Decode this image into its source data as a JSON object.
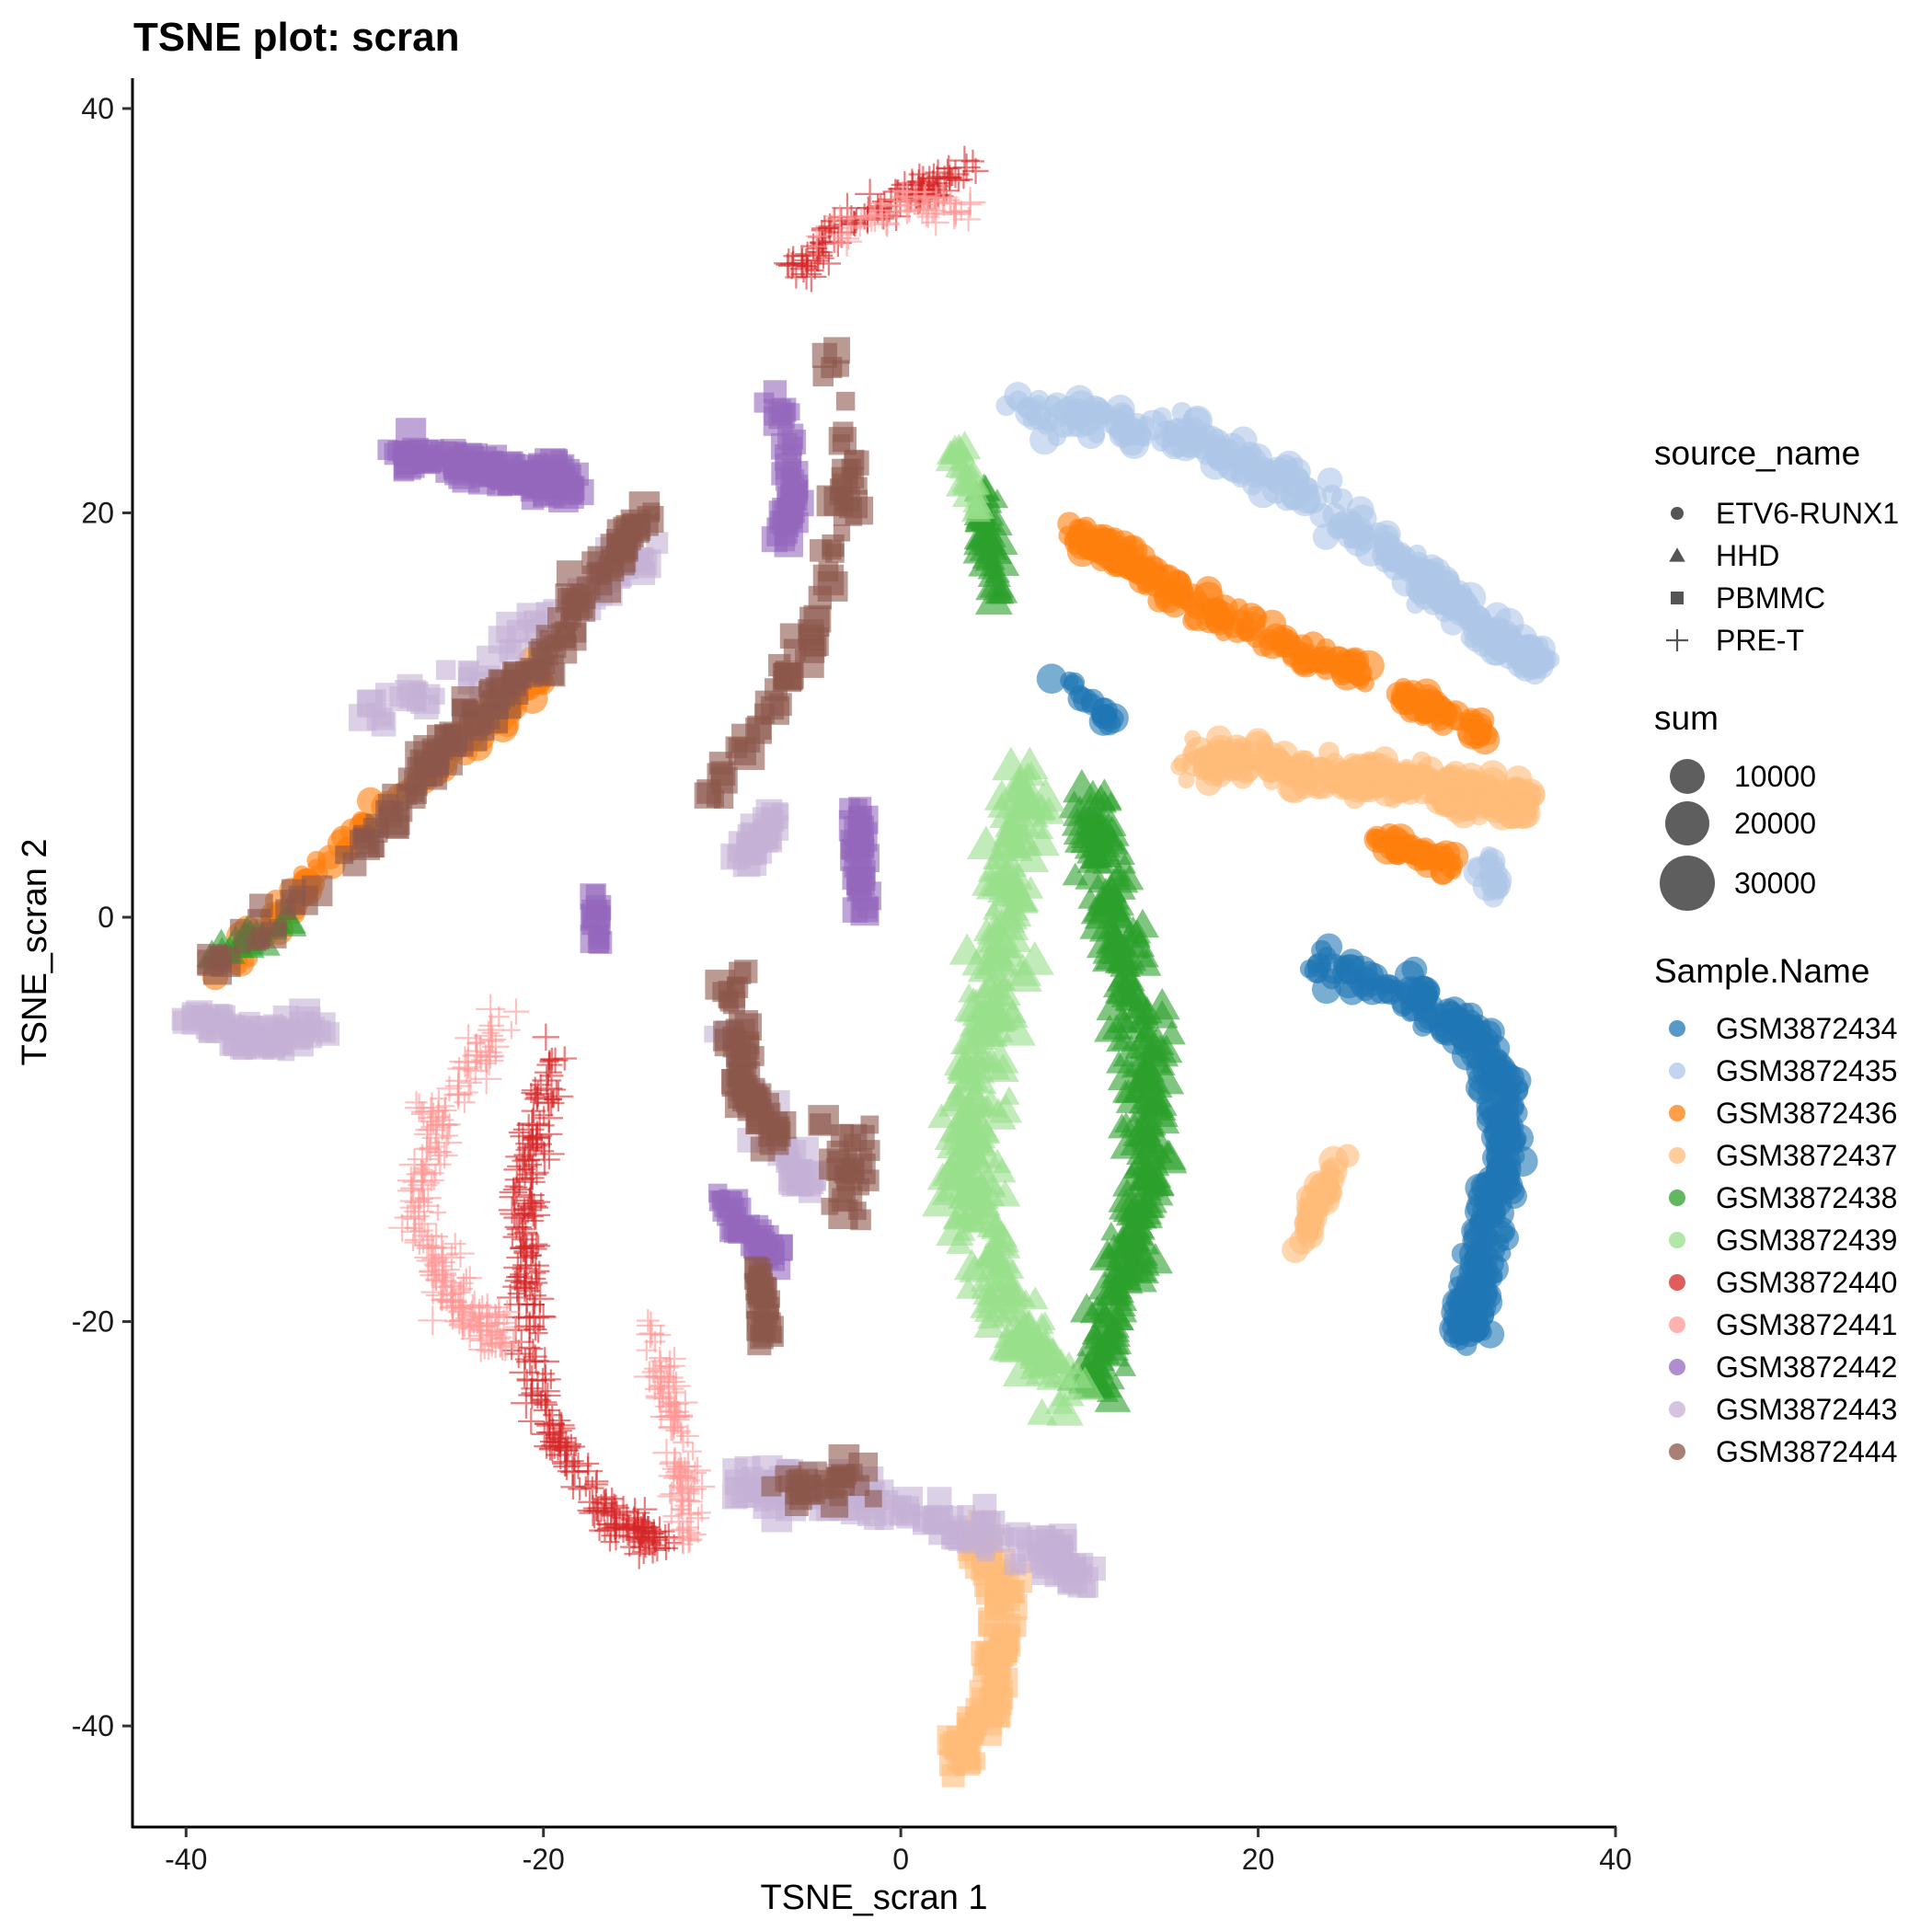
{
  "chart_data": {
    "type": "scatter",
    "title": "TSNE plot: scran",
    "xlabel": "TSNE_scran 1",
    "ylabel": "TSNE_scran 2",
    "xlim": [
      -43,
      40
    ],
    "ylim": [
      -45,
      41.5
    ],
    "x_ticks": [
      -40,
      -20,
      0,
      20,
      40
    ],
    "y_ticks": [
      -40,
      -20,
      0,
      20,
      40
    ],
    "grid": false,
    "legend_position": "right",
    "shape_legend": {
      "title": "source_name",
      "items": [
        {
          "label": "ETV6-RUNX1",
          "shape": "circle"
        },
        {
          "label": "HHD",
          "shape": "triangle"
        },
        {
          "label": "PBMMC",
          "shape": "square"
        },
        {
          "label": "PRE-T",
          "shape": "plus"
        }
      ]
    },
    "size_legend": {
      "title": "sum",
      "items": [
        "10000",
        "20000",
        "30000"
      ]
    },
    "color_legend": {
      "title": "Sample.Name",
      "items": [
        {
          "label": "GSM3872434",
          "color": "#1f77b4"
        },
        {
          "label": "GSM3872435",
          "color": "#aec7e8"
        },
        {
          "label": "GSM3872436",
          "color": "#ff7f0e"
        },
        {
          "label": "GSM3872437",
          "color": "#ffbb78"
        },
        {
          "label": "GSM3872438",
          "color": "#2ca02c"
        },
        {
          "label": "GSM3872439",
          "color": "#98df8a"
        },
        {
          "label": "GSM3872440",
          "color": "#d62728"
        },
        {
          "label": "GSM3872441",
          "color": "#ff9896"
        },
        {
          "label": "GSM3872442",
          "color": "#9467bd"
        },
        {
          "label": "GSM3872443",
          "color": "#c5b0d5"
        },
        {
          "label": "GSM3872444",
          "color": "#8c564b"
        }
      ]
    },
    "clusters": [
      {
        "sample": "GSM3872434",
        "shape": "circle",
        "n": 360,
        "path": [
          [
            23,
            -2.2
          ],
          [
            29,
            -3.8
          ],
          [
            33,
            -7
          ],
          [
            34,
            -11
          ],
          [
            33,
            -15
          ],
          [
            32,
            -19
          ],
          [
            31.5,
            -20.5
          ]
        ],
        "spread": 1.3
      },
      {
        "sample": "GSM3872434",
        "shape": "circle",
        "n": 18,
        "path": [
          [
            9,
            12
          ],
          [
            12,
            9.5
          ]
        ],
        "spread": 0.7
      },
      {
        "sample": "GSM3872435",
        "shape": "circle",
        "n": 300,
        "path": [
          [
            6,
            25
          ],
          [
            15,
            24
          ],
          [
            23,
            21
          ],
          [
            29,
            17
          ],
          [
            33,
            14
          ],
          [
            36,
            12.5
          ]
        ],
        "spread": 1.2
      },
      {
        "sample": "GSM3872435",
        "shape": "circle",
        "n": 16,
        "path": [
          [
            33,
            3
          ],
          [
            33.5,
            1
          ]
        ],
        "spread": 0.8
      },
      {
        "sample": "GSM3872436",
        "shape": "circle",
        "n": 160,
        "path": [
          [
            9.5,
            19
          ],
          [
            14,
            17
          ],
          [
            20,
            14
          ],
          [
            26,
            12
          ]
        ],
        "spread": 0.9
      },
      {
        "sample": "GSM3872436",
        "shape": "circle",
        "n": 50,
        "path": [
          [
            28,
            11
          ],
          [
            33,
            9
          ]
        ],
        "spread": 0.7
      },
      {
        "sample": "GSM3872436",
        "shape": "circle",
        "n": 40,
        "path": [
          [
            26,
            4
          ],
          [
            31,
            2.5
          ]
        ],
        "spread": 0.6
      },
      {
        "sample": "GSM3872436",
        "shape": "circle",
        "n": 120,
        "path": [
          [
            -38,
            -3
          ],
          [
            -32,
            3
          ],
          [
            -24,
            9
          ],
          [
            -20,
            12
          ]
        ],
        "spread": 0.9
      },
      {
        "sample": "GSM3872437",
        "shape": "circle",
        "n": 260,
        "path": [
          [
            16,
            8
          ],
          [
            24,
            7
          ],
          [
            30,
            6.5
          ],
          [
            35,
            5.5
          ]
        ],
        "spread": 1.3
      },
      {
        "sample": "GSM3872437",
        "shape": "circle",
        "n": 40,
        "path": [
          [
            24.5,
            -12
          ],
          [
            22.5,
            -16
          ]
        ],
        "spread": 0.6
      },
      {
        "sample": "GSM3872437",
        "shape": "square",
        "n": 110,
        "path": [
          [
            4,
            -30
          ],
          [
            6,
            -34
          ],
          [
            5,
            -39
          ],
          [
            3,
            -41.5
          ]
        ],
        "spread": 1.0
      },
      {
        "sample": "GSM3872438",
        "shape": "triangle",
        "n": 330,
        "path": [
          [
            10.5,
            6
          ],
          [
            12,
            0
          ],
          [
            13.5,
            -6
          ],
          [
            14,
            -12
          ],
          [
            12.5,
            -18
          ],
          [
            10.5,
            -23.5
          ]
        ],
        "spread": 1.6
      },
      {
        "sample": "GSM3872438",
        "shape": "triangle",
        "n": 45,
        "path": [
          [
            4.5,
            21
          ],
          [
            5.5,
            16
          ]
        ],
        "spread": 0.8
      },
      {
        "sample": "GSM3872438",
        "shape": "triangle",
        "n": 18,
        "path": [
          [
            -39,
            -2
          ],
          [
            -34,
            0
          ]
        ],
        "spread": 0.6
      },
      {
        "sample": "GSM3872439",
        "shape": "triangle",
        "n": 360,
        "path": [
          [
            7,
            7
          ],
          [
            6,
            0
          ],
          [
            4,
            -8
          ],
          [
            4,
            -14
          ],
          [
            6,
            -19
          ],
          [
            9,
            -23.5
          ]
        ],
        "spread": 1.9
      },
      {
        "sample": "GSM3872439",
        "shape": "triangle",
        "n": 22,
        "path": [
          [
            3,
            23.5
          ],
          [
            4.5,
            20
          ]
        ],
        "spread": 0.6
      },
      {
        "sample": "GSM3872440",
        "shape": "plus",
        "n": 300,
        "path": [
          [
            -19.5,
            -7
          ],
          [
            -21,
            -13
          ],
          [
            -21,
            -19
          ],
          [
            -20,
            -25
          ],
          [
            -16,
            -30
          ],
          [
            -13,
            -31
          ]
        ],
        "spread": 1.1
      },
      {
        "sample": "GSM3872440",
        "shape": "plus",
        "n": 120,
        "path": [
          [
            -6,
            32
          ],
          [
            -3,
            34.5
          ],
          [
            1,
            36
          ],
          [
            4,
            37
          ]
        ],
        "spread": 0.9
      },
      {
        "sample": "GSM3872441",
        "shape": "plus",
        "n": 220,
        "path": [
          [
            -22,
            -5
          ],
          [
            -26,
            -10
          ],
          [
            -27,
            -15
          ],
          [
            -25,
            -19
          ],
          [
            -22,
            -21
          ]
        ],
        "spread": 1.3
      },
      {
        "sample": "GSM3872441",
        "shape": "plus",
        "n": 110,
        "path": [
          [
            -14,
            -20
          ],
          [
            -13,
            -24
          ],
          [
            -12,
            -28
          ],
          [
            -12,
            -31
          ]
        ],
        "spread": 1.0
      },
      {
        "sample": "GSM3872441",
        "shape": "plus",
        "n": 60,
        "path": [
          [
            -5,
            33
          ],
          [
            0,
            35.5
          ],
          [
            4,
            35
          ]
        ],
        "spread": 1.0
      },
      {
        "sample": "GSM3872442",
        "shape": "square",
        "n": 140,
        "path": [
          [
            -28,
            23
          ],
          [
            -22,
            22
          ],
          [
            -18,
            21.5
          ]
        ],
        "spread": 1.0
      },
      {
        "sample": "GSM3872442",
        "shape": "square",
        "n": 50,
        "path": [
          [
            -7,
            26
          ],
          [
            -6,
            21
          ],
          [
            -6.5,
            19
          ]
        ],
        "spread": 0.8
      },
      {
        "sample": "GSM3872442",
        "shape": "square",
        "n": 38,
        "path": [
          [
            -2.5,
            5.5
          ],
          [
            -2,
            0
          ]
        ],
        "spread": 0.6
      },
      {
        "sample": "GSM3872442",
        "shape": "square",
        "n": 42,
        "path": [
          [
            -10,
            -14
          ],
          [
            -7,
            -17
          ]
        ],
        "spread": 1.0
      },
      {
        "sample": "GSM3872442",
        "shape": "square",
        "n": 16,
        "path": [
          [
            -17,
            1
          ],
          [
            -17,
            -1.5
          ]
        ],
        "spread": 0.4
      },
      {
        "sample": "GSM3872443",
        "shape": "square",
        "n": 140,
        "path": [
          [
            -9,
            -28
          ],
          [
            -3,
            -28.5
          ],
          [
            3,
            -30
          ],
          [
            8,
            -31
          ],
          [
            10,
            -33
          ]
        ],
        "spread": 1.4
      },
      {
        "sample": "GSM3872443",
        "shape": "square",
        "n": 70,
        "path": [
          [
            -40,
            -5
          ],
          [
            -36,
            -6
          ],
          [
            -32,
            -5.5
          ]
        ],
        "spread": 0.9
      },
      {
        "sample": "GSM3872443",
        "shape": "square",
        "n": 60,
        "path": [
          [
            -30,
            10
          ],
          [
            -24,
            12
          ],
          [
            -18,
            16
          ],
          [
            -14,
            18
          ]
        ],
        "spread": 1.2
      },
      {
        "sample": "GSM3872443",
        "shape": "square",
        "n": 40,
        "path": [
          [
            -10,
            -6
          ],
          [
            -6,
            -12
          ],
          [
            -5,
            -14
          ]
        ],
        "spread": 1.2
      },
      {
        "sample": "GSM3872443",
        "shape": "square",
        "n": 32,
        "path": [
          [
            -7,
            5
          ],
          [
            -9,
            3
          ]
        ],
        "spread": 1.0
      },
      {
        "sample": "GSM3872444",
        "shape": "square",
        "n": 160,
        "path": [
          [
            -39,
            -3
          ],
          [
            -32,
            2
          ],
          [
            -27,
            7
          ],
          [
            -24,
            10
          ],
          [
            -20,
            13
          ],
          [
            -17,
            17
          ],
          [
            -14,
            20
          ]
        ],
        "spread": 1.1
      },
      {
        "sample": "GSM3872444",
        "shape": "square",
        "n": 70,
        "path": [
          [
            -4,
            28
          ],
          [
            -3,
            22
          ],
          [
            -4,
            16
          ],
          [
            -7,
            11
          ],
          [
            -11,
            5
          ]
        ],
        "spread": 1.0
      },
      {
        "sample": "GSM3872444",
        "shape": "square",
        "n": 60,
        "path": [
          [
            -9.5,
            -3
          ],
          [
            -9,
            -8
          ],
          [
            -7,
            -11
          ]
        ],
        "spread": 0.9
      },
      {
        "sample": "GSM3872444",
        "shape": "square",
        "n": 30,
        "path": [
          [
            -8,
            -17
          ],
          [
            -7.5,
            -21
          ]
        ],
        "spread": 0.6
      },
      {
        "sample": "GSM3872444",
        "shape": "square",
        "n": 28,
        "path": [
          [
            -6,
            -28
          ],
          [
            -2,
            -28
          ]
        ],
        "spread": 1.2
      },
      {
        "sample": "GSM3872444",
        "shape": "square",
        "n": 28,
        "path": [
          [
            -3,
            -10
          ],
          [
            -3,
            -15
          ]
        ],
        "spread": 1.5
      }
    ]
  }
}
